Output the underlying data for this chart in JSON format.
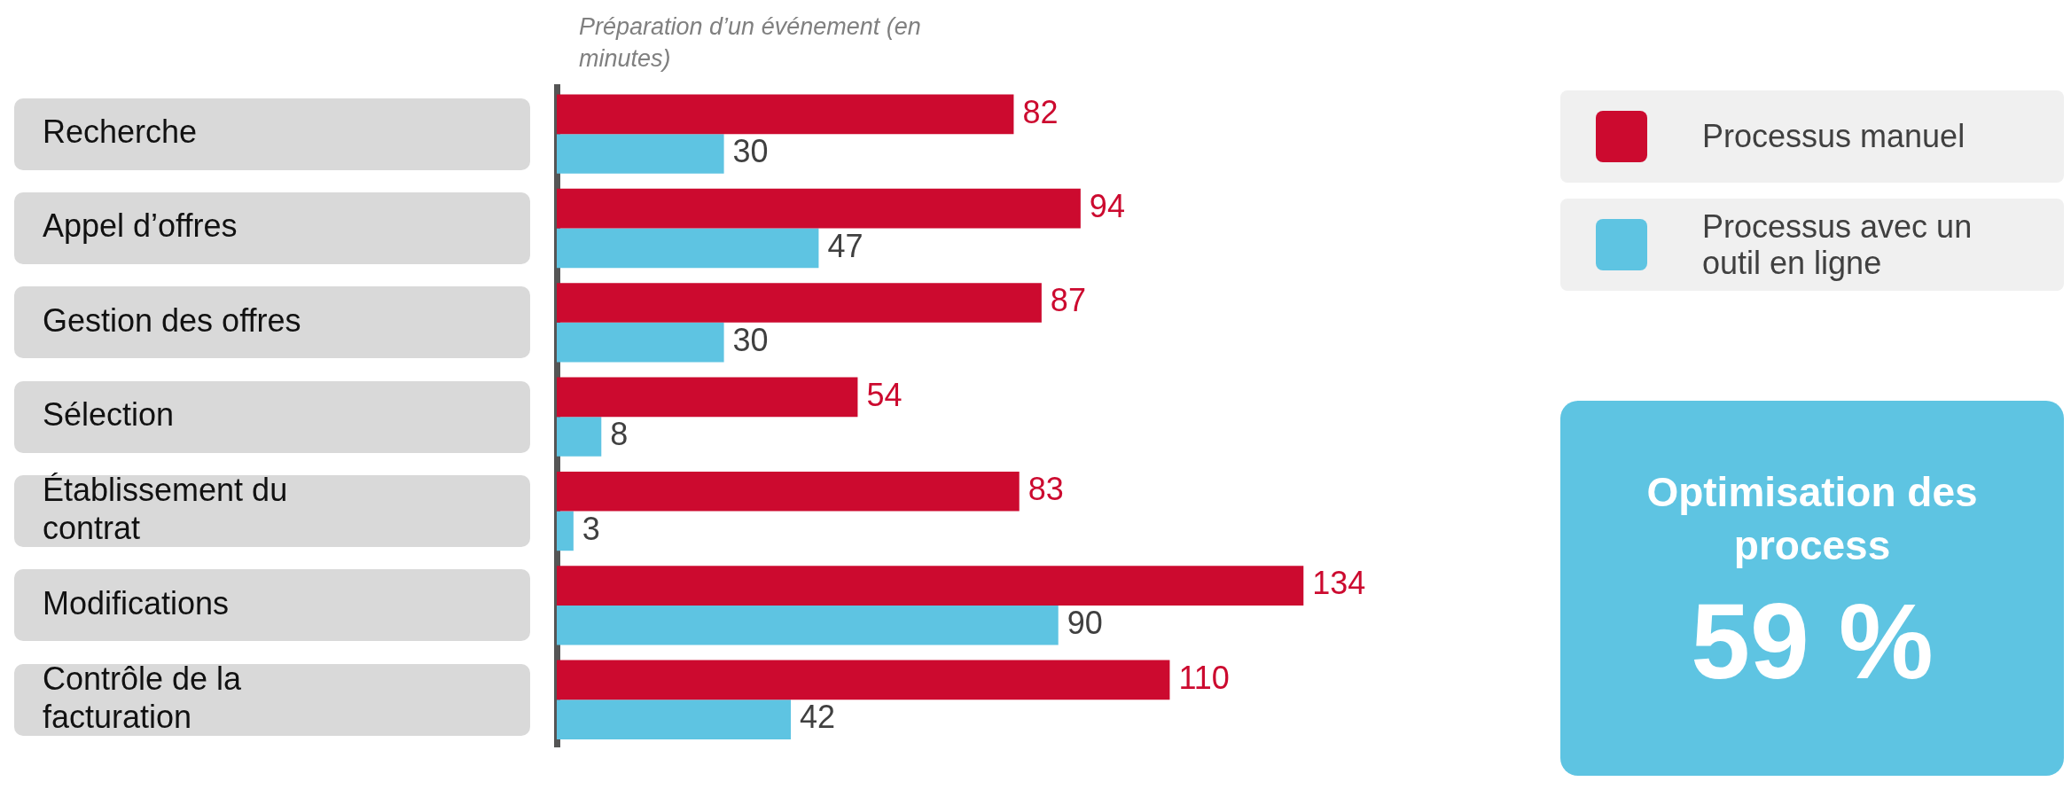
{
  "chart_data": {
    "type": "bar",
    "orientation": "horizontal",
    "title": "Préparation d’un événement (en minutes)",
    "categories": [
      "Recherche",
      "Appel d’offres",
      "Gestion des offres",
      "Sélection",
      "Établissement du contrat",
      "Modifications",
      "Contrôle de la facturation"
    ],
    "series": [
      {
        "name": "Processus manuel",
        "color": "#cc0a2f",
        "values": [
          82,
          94,
          87,
          54,
          83,
          134,
          110
        ]
      },
      {
        "name": "Processus avec un outil en ligne",
        "color": "#5ec4e2",
        "values": [
          30,
          47,
          30,
          8,
          3,
          90,
          42
        ]
      }
    ],
    "data_labels": true,
    "grid": false,
    "legend": "top right",
    "tick_labels": "y",
    "annotations": [
      "Optimisation des process",
      "59 %"
    ]
  }
}
